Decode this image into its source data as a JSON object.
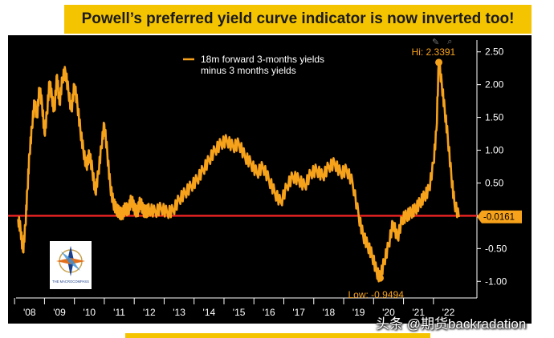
{
  "banner": {
    "title": "Powell’s preferred yield curve indicator is now inverted too!"
  },
  "chart_data": {
    "type": "line",
    "legend": [
      "18m forward 3-months yields",
      "minus 3 months yields"
    ],
    "xlabels": [
      "'08",
      "'09",
      "'10",
      "'11",
      "'12",
      "'13",
      "'14",
      "'15",
      "'16",
      "'17",
      "'18",
      "'19",
      "'20",
      "'21",
      "'22"
    ],
    "ylabels": [
      "2.50",
      "2.00",
      "1.50",
      "1.00",
      "0.50",
      "0.00",
      "-0.50",
      "-1.00"
    ],
    "yticks": [
      2.5,
      2.0,
      1.5,
      1.0,
      0.5,
      0.0,
      -0.5,
      -1.0
    ],
    "ylim": [
      -1.18,
      2.68
    ],
    "xlim": [
      2007.55,
      2022.9
    ],
    "reference_line": 0.0,
    "hi_label": "Hi: 2.3391",
    "low_label": "Low: -0.9494",
    "last_label": "-0.0161",
    "hi_point": {
      "x": 2021.68,
      "y": 2.3391
    },
    "low_point": {
      "x": 2019.72,
      "y": -0.9494
    },
    "last_point": {
      "x": 2022.35,
      "y": -0.0161
    },
    "series": [
      {
        "color": "#f7a21b",
        "x": [
          2007.62,
          2007.7,
          2007.78,
          2007.86,
          2007.93,
          2008.0,
          2008.08,
          2008.17,
          2008.25,
          2008.33,
          2008.42,
          2008.5,
          2008.58,
          2008.67,
          2008.75,
          2008.83,
          2008.92,
          2009.0,
          2009.1,
          2009.2,
          2009.3,
          2009.4,
          2009.5,
          2009.6,
          2009.7,
          2009.8,
          2009.9,
          2010.0,
          2010.1,
          2010.2,
          2010.3,
          2010.4,
          2010.5,
          2010.6,
          2010.7,
          2010.8,
          2010.9,
          2011.0,
          2011.1,
          2011.2,
          2011.3,
          2011.4,
          2011.5,
          2011.6,
          2011.7,
          2011.8,
          2011.9,
          2012.0,
          2012.2,
          2012.4,
          2012.6,
          2012.8,
          2013.0,
          2013.2,
          2013.4,
          2013.6,
          2013.8,
          2014.0,
          2014.2,
          2014.4,
          2014.6,
          2014.8,
          2015.0,
          2015.2,
          2015.4,
          2015.6,
          2015.8,
          2016.0,
          2016.2,
          2016.4,
          2016.6,
          2016.8,
          2017.0,
          2017.2,
          2017.4,
          2017.6,
          2017.8,
          2018.0,
          2018.2,
          2018.4,
          2018.6,
          2018.8,
          2019.0,
          2019.15,
          2019.3,
          2019.45,
          2019.6,
          2019.72,
          2019.85,
          2020.0,
          2020.15,
          2020.3,
          2020.45,
          2020.6,
          2020.75,
          2020.9,
          2021.05,
          2021.2,
          2021.35,
          2021.5,
          2021.6,
          2021.68,
          2021.78,
          2021.88,
          2021.98,
          2022.1,
          2022.2,
          2022.35
        ],
        "y": [
          -0.05,
          -0.2,
          -0.55,
          -0.15,
          0.4,
          0.95,
          1.35,
          1.75,
          1.5,
          1.95,
          1.7,
          1.25,
          1.55,
          2.05,
          1.8,
          1.6,
          2.15,
          1.7,
          2.1,
          2.2,
          1.9,
          1.6,
          2.0,
          1.7,
          1.3,
          1.0,
          0.75,
          0.95,
          0.7,
          0.35,
          0.65,
          1.05,
          1.4,
          0.95,
          0.45,
          0.2,
          0.1,
          0.05,
          0.02,
          0.12,
          0.08,
          0.25,
          0.12,
          0.05,
          0.22,
          0.08,
          0.06,
          0.1,
          0.06,
          0.12,
          0.05,
          0.08,
          0.25,
          0.35,
          0.45,
          0.55,
          0.7,
          0.85,
          1.0,
          1.1,
          1.15,
          1.05,
          1.1,
          0.9,
          0.8,
          0.65,
          0.75,
          0.55,
          0.35,
          0.2,
          0.45,
          0.6,
          0.55,
          0.45,
          0.65,
          0.7,
          0.6,
          0.75,
          0.8,
          0.65,
          0.7,
          0.5,
          0.0,
          -0.3,
          -0.45,
          -0.6,
          -0.85,
          -0.95,
          -0.7,
          -0.45,
          -0.1,
          -0.35,
          -0.05,
          0.0,
          0.05,
          0.1,
          0.2,
          0.3,
          0.4,
          0.8,
          1.3,
          2.34,
          2.0,
          1.6,
          1.2,
          0.6,
          0.2,
          -0.02
        ]
      }
    ],
    "colors": {
      "line": "#f7a21b",
      "reference": "#e52222",
      "axis": "#ffffff",
      "label_bg": "#f7a21b"
    }
  },
  "logo": {
    "text": "THE MACROCOMPASS"
  },
  "watermark": {
    "text": "头条 @期货backradation"
  }
}
